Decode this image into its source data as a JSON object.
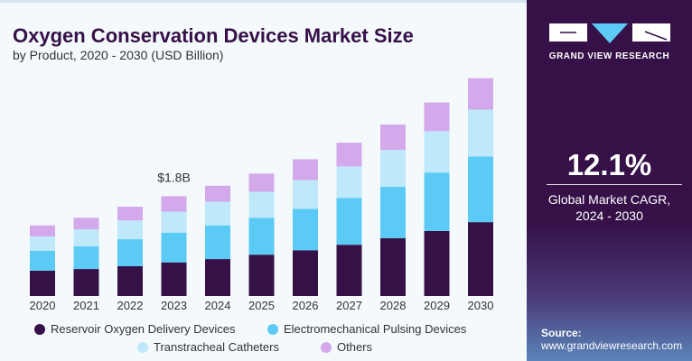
{
  "header": {
    "title": "Oxygen Conservation Devices Market Size",
    "subtitle": "by Product, 2020 - 2030 (USD Billion)"
  },
  "panel": {
    "brand": "GRAND VIEW RESEARCH",
    "cagr": "12.1%",
    "cagr_label_1": "Global Market CAGR,",
    "cagr_label_2": "2024 - 2030",
    "source_label": "Source:",
    "source_url": "www.grandviewresearch.com"
  },
  "colors": {
    "reservoir": "#361148",
    "electro": "#5bcbf5",
    "trans": "#bfe9fa",
    "others": "#d4a9ec"
  },
  "chart_data": {
    "type": "bar",
    "stacked": true,
    "title": "Oxygen Conservation Devices Market Size",
    "subtitle": "by Product, 2020 - 2030 (USD Billion)",
    "categories": [
      "2020",
      "2021",
      "2022",
      "2023",
      "2024",
      "2025",
      "2026",
      "2027",
      "2028",
      "2029",
      "2030"
    ],
    "series": [
      {
        "name": "Reservoir Oxygen Delivery Devices",
        "key": "reservoir",
        "values": [
          0.46,
          0.49,
          0.54,
          0.61,
          0.67,
          0.75,
          0.83,
          0.93,
          1.05,
          1.18,
          1.34
        ]
      },
      {
        "name": "Electromechanical Pulsing Devices",
        "key": "electro",
        "values": [
          0.36,
          0.41,
          0.49,
          0.54,
          0.61,
          0.67,
          0.75,
          0.85,
          0.93,
          1.06,
          1.19
        ]
      },
      {
        "name": "Transtracheal Catheters",
        "key": "trans",
        "values": [
          0.26,
          0.31,
          0.34,
          0.38,
          0.43,
          0.47,
          0.52,
          0.57,
          0.67,
          0.75,
          0.85
        ]
      },
      {
        "name": "Others",
        "key": "others",
        "values": [
          0.2,
          0.21,
          0.25,
          0.28,
          0.29,
          0.33,
          0.38,
          0.43,
          0.46,
          0.52,
          0.57
        ]
      }
    ],
    "annotations": [
      {
        "category": "2023",
        "text": "$1.8B"
      }
    ],
    "ylim": [
      0,
      4.2
    ],
    "grid": false,
    "legend": "bottom"
  }
}
